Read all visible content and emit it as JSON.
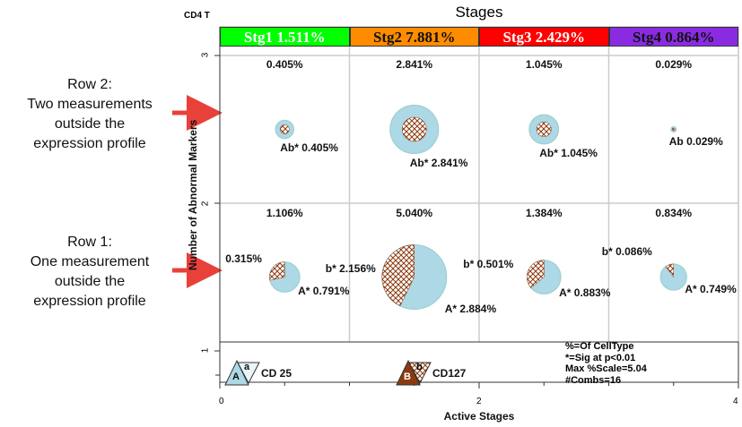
{
  "chart_data": {
    "type": "scatter",
    "title": "Stages",
    "corner_label": "CD4 T",
    "xlabel": "Active Stages",
    "ylabel": "Number of Abnormal Markers",
    "xlim": [
      0,
      4
    ],
    "ylim": [
      0.8,
      3.2
    ],
    "x_ticks": [
      "0",
      "2",
      "4"
    ],
    "y_ticks": [
      "1",
      "2",
      "3"
    ],
    "stages": [
      {
        "label": "Stg1 1.511%",
        "color": "#00ff00",
        "text_color": "#ffffff"
      },
      {
        "label": "Stg2 7.881%",
        "color": "#ff8c00",
        "text_color": "#111111"
      },
      {
        "label": "Stg3 2.429%",
        "color": "#ff0000",
        "text_color": "#ffffff"
      },
      {
        "label": "Stg4 0.864%",
        "color": "#8a2be2",
        "text_color": "#111111"
      }
    ],
    "row2": {
      "totals": [
        "0.405%",
        "2.841%",
        "1.045%",
        "0.029%"
      ],
      "bubbles": [
        {
          "x": 0.5,
          "y": 2.5,
          "value": 0.405,
          "label": "Ab* 0.405%"
        },
        {
          "x": 1.5,
          "y": 2.5,
          "value": 2.841,
          "label": "Ab* 2.841%"
        },
        {
          "x": 2.5,
          "y": 2.5,
          "value": 1.045,
          "label": "Ab* 1.045%"
        },
        {
          "x": 3.5,
          "y": 2.5,
          "value": 0.029,
          "label": "Ab 0.029%"
        }
      ]
    },
    "row1": {
      "totals": [
        "1.106%",
        "5.040%",
        "1.384%",
        "0.834%"
      ],
      "bubbles": [
        {
          "x": 0.5,
          "y": 1.5,
          "a": 0.791,
          "b": 0.315,
          "a_label": "A* 0.791%",
          "b_label": "0.315%"
        },
        {
          "x": 1.5,
          "y": 1.5,
          "a": 2.884,
          "b": 2.156,
          "a_label": "A* 2.884%",
          "b_label": "b* 2.156%"
        },
        {
          "x": 2.5,
          "y": 1.5,
          "a": 0.883,
          "b": 0.501,
          "a_label": "A* 0.883%",
          "b_label": "b* 0.501%"
        },
        {
          "x": 3.5,
          "y": 1.5,
          "a": 0.749,
          "b": 0.086,
          "a_label": "A* 0.749%",
          "b_label": "b* 0.086%"
        }
      ]
    },
    "legend": {
      "a_big": "A",
      "a_small": "a",
      "a_name": "CD 25",
      "b_big": "B",
      "b_small": "b",
      "b_name": "CD127",
      "notes": [
        "%=Of CellType",
        "*=Sig at p<0.01",
        "Max %Scale=5.04",
        "#Combs=16"
      ]
    },
    "colors": {
      "a": "#add8e6",
      "b": "#8b3a0f"
    }
  },
  "annotations": {
    "row2": [
      "Row 2:",
      "Two measurements",
      "outside the",
      "expression profile"
    ],
    "row1": [
      "Row 1:",
      "One measurement",
      "outside the",
      "expression profile"
    ]
  }
}
